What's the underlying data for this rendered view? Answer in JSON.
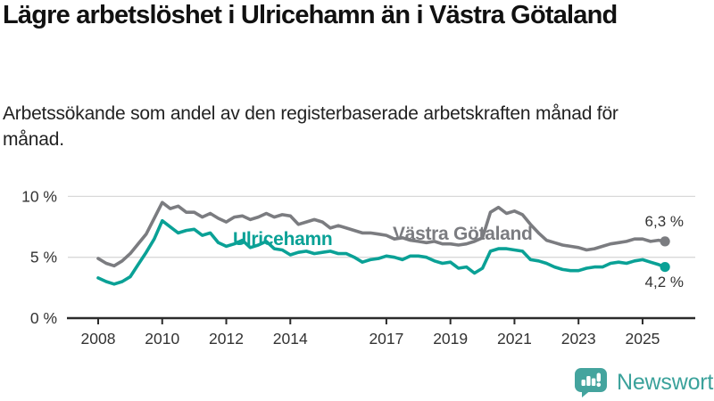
{
  "header": {
    "title": "Lägre arbetslöshet i Ulricehamn än i Västra Götaland",
    "subtitle": "Arbetssökande som andel av den registerbaserade arbetskraften månad för månad."
  },
  "chart_data": {
    "type": "line",
    "title": "Lägre arbetslöshet i Ulricehamn än i Västra Götaland",
    "subtitle": "Arbetssökande som andel av den registerbaserade arbetskraften månad för månad.",
    "xlabel": "",
    "ylabel": "",
    "x_unit": "year (monthly data)",
    "xlim": [
      2007.0,
      2026.6
    ],
    "ylim": [
      0,
      10.9
    ],
    "grid": "horizontal",
    "legend_position": "inline-labels-on-lines",
    "x_ticks": [
      2008,
      2010,
      2012,
      2014,
      2017,
      2019,
      2021,
      2023,
      2025
    ],
    "y_ticks": [
      {
        "value": 10,
        "label": "10 %"
      },
      {
        "value": 5,
        "label": "5 %"
      },
      {
        "value": 0,
        "label": "0 %"
      }
    ],
    "x": [
      2008.0,
      2008.25,
      2008.5,
      2008.75,
      2009.0,
      2009.25,
      2009.5,
      2009.75,
      2010.0,
      2010.25,
      2010.5,
      2010.75,
      2011.0,
      2011.25,
      2011.5,
      2011.75,
      2012.0,
      2012.25,
      2012.5,
      2012.75,
      2013.0,
      2013.25,
      2013.5,
      2013.75,
      2014.0,
      2014.25,
      2014.5,
      2014.75,
      2015.0,
      2015.25,
      2015.5,
      2015.75,
      2016.0,
      2016.25,
      2016.5,
      2016.75,
      2017.0,
      2017.25,
      2017.5,
      2017.75,
      2018.0,
      2018.25,
      2018.5,
      2018.75,
      2019.0,
      2019.25,
      2019.5,
      2019.75,
      2020.0,
      2020.25,
      2020.5,
      2020.75,
      2021.0,
      2021.25,
      2021.5,
      2021.75,
      2022.0,
      2022.25,
      2022.5,
      2022.75,
      2023.0,
      2023.25,
      2023.5,
      2023.75,
      2024.0,
      2024.25,
      2024.5,
      2024.75,
      2025.0,
      2025.25,
      2025.5,
      2025.7
    ],
    "series": [
      {
        "name": "Västra Götaland",
        "color": "#7b7c80",
        "end_value_label": "6,3 %",
        "end_value": 6.3,
        "values": [
          4.9,
          4.5,
          4.3,
          4.7,
          5.3,
          6.1,
          6.9,
          8.2,
          9.5,
          9.0,
          9.2,
          8.7,
          8.7,
          8.3,
          8.6,
          8.2,
          7.9,
          8.3,
          8.4,
          8.1,
          8.3,
          8.6,
          8.3,
          8.5,
          8.4,
          7.7,
          7.9,
          8.1,
          7.9,
          7.4,
          7.6,
          7.4,
          7.2,
          7.0,
          7.0,
          6.9,
          6.8,
          6.5,
          6.6,
          6.4,
          6.3,
          6.2,
          6.3,
          6.1,
          6.1,
          6.0,
          6.1,
          6.3,
          6.6,
          8.7,
          9.1,
          8.6,
          8.8,
          8.5,
          7.7,
          7.0,
          6.4,
          6.2,
          6.0,
          5.9,
          5.8,
          5.6,
          5.7,
          5.9,
          6.1,
          6.2,
          6.3,
          6.5,
          6.5,
          6.3,
          6.4,
          6.3
        ]
      },
      {
        "name": "Ulricehamn",
        "color": "#0aa196",
        "end_value_label": "4,2 %",
        "end_value": 4.2,
        "values": [
          3.3,
          3.0,
          2.8,
          3.0,
          3.4,
          4.4,
          5.4,
          6.5,
          8.0,
          7.5,
          7.0,
          7.2,
          7.3,
          6.8,
          7.0,
          6.2,
          5.9,
          6.1,
          6.4,
          5.8,
          6.0,
          6.3,
          5.7,
          5.6,
          5.2,
          5.4,
          5.5,
          5.3,
          5.4,
          5.5,
          5.3,
          5.3,
          5.0,
          4.6,
          4.8,
          4.9,
          5.1,
          5.0,
          4.8,
          5.1,
          5.1,
          5.0,
          4.7,
          4.5,
          4.6,
          4.1,
          4.2,
          3.7,
          4.1,
          5.5,
          5.7,
          5.7,
          5.6,
          5.5,
          4.8,
          4.7,
          4.5,
          4.2,
          4.0,
          3.9,
          3.9,
          4.1,
          4.2,
          4.2,
          4.5,
          4.6,
          4.5,
          4.7,
          4.8,
          4.6,
          4.4,
          4.2
        ]
      }
    ]
  },
  "annotations": {
    "ulricehamn_label": "Ulricehamn",
    "vastra_label": "Västra Götaland",
    "vastra_end_value": "6,3 %",
    "ulricehamn_end_value": "4,2 %"
  },
  "logo": {
    "text": "Newsworthy",
    "icon": "newsworthy-speech-bubble-bar-chart-icon",
    "brand_color": "#3ba29b"
  },
  "colors": {
    "background": "#ffffff",
    "title_text": "#111111",
    "subtitle_text": "#222222",
    "axis_text": "#333333",
    "axis_line": "#2b2b2b",
    "gridline": "#d9d9d9",
    "series_vastra": "#7b7c80",
    "series_ulricehamn": "#0aa196"
  }
}
